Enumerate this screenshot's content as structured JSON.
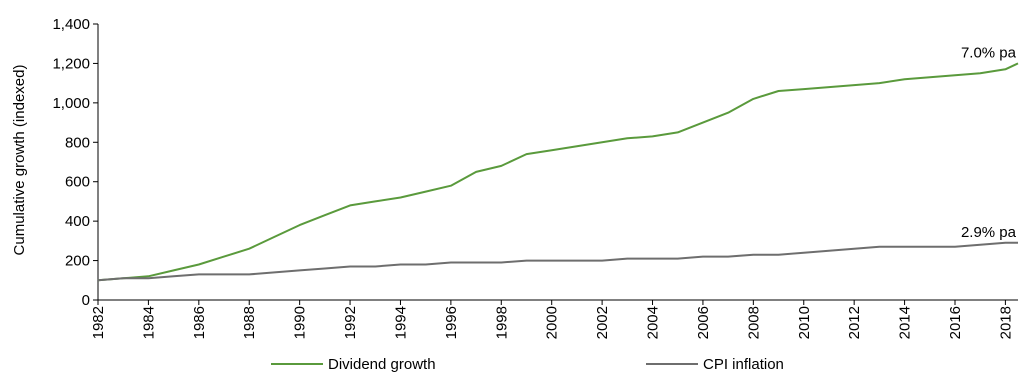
{
  "chart_data": {
    "type": "line",
    "title": "",
    "xlabel": "",
    "ylabel": "Cumulative growth (indexed)",
    "ylim": [
      0,
      1400
    ],
    "yticks": [
      0,
      200,
      400,
      600,
      800,
      1000,
      1200,
      1400
    ],
    "ytick_labels": [
      "0",
      "200",
      "400",
      "600",
      "800",
      "1,000",
      "1,200",
      "1,400"
    ],
    "xlim": [
      1982,
      2018.5
    ],
    "xticks": [
      1982,
      1984,
      1986,
      1988,
      1990,
      1992,
      1994,
      1996,
      1998,
      2000,
      2002,
      2004,
      2006,
      2008,
      2010,
      2012,
      2014,
      2016,
      2018
    ],
    "grid": false,
    "legend_position": "bottom",
    "x": [
      1982,
      1983,
      1984,
      1985,
      1986,
      1987,
      1988,
      1989,
      1990,
      1991,
      1992,
      1993,
      1994,
      1995,
      1996,
      1997,
      1998,
      1999,
      2000,
      2001,
      2002,
      2003,
      2004,
      2005,
      2006,
      2007,
      2008,
      2009,
      2010,
      2011,
      2012,
      2013,
      2014,
      2015,
      2016,
      2017,
      2018,
      2018.5
    ],
    "series": [
      {
        "name": "Dividend growth",
        "color": "#5a9a3c",
        "values": [
          100,
          110,
          120,
          150,
          180,
          220,
          260,
          320,
          380,
          430,
          480,
          500,
          520,
          550,
          580,
          650,
          680,
          740,
          760,
          780,
          800,
          820,
          830,
          850,
          900,
          950,
          1020,
          1060,
          1070,
          1080,
          1090,
          1100,
          1120,
          1130,
          1140,
          1150,
          1170,
          1200
        ]
      },
      {
        "name": "CPI inflation",
        "color": "#6e6e6e",
        "values": [
          100,
          110,
          110,
          120,
          130,
          130,
          130,
          140,
          150,
          160,
          170,
          170,
          180,
          180,
          190,
          190,
          190,
          200,
          200,
          200,
          200,
          210,
          210,
          210,
          220,
          220,
          230,
          230,
          240,
          250,
          260,
          270,
          270,
          270,
          270,
          280,
          290,
          290
        ]
      }
    ],
    "annotations": [
      {
        "text": "7.0%  pa",
        "x": 2018.5,
        "y": 1200,
        "series": "Dividend growth"
      },
      {
        "text": "2.9%  pa",
        "x": 2018.5,
        "y": 290,
        "series": "CPI inflation"
      }
    ]
  }
}
